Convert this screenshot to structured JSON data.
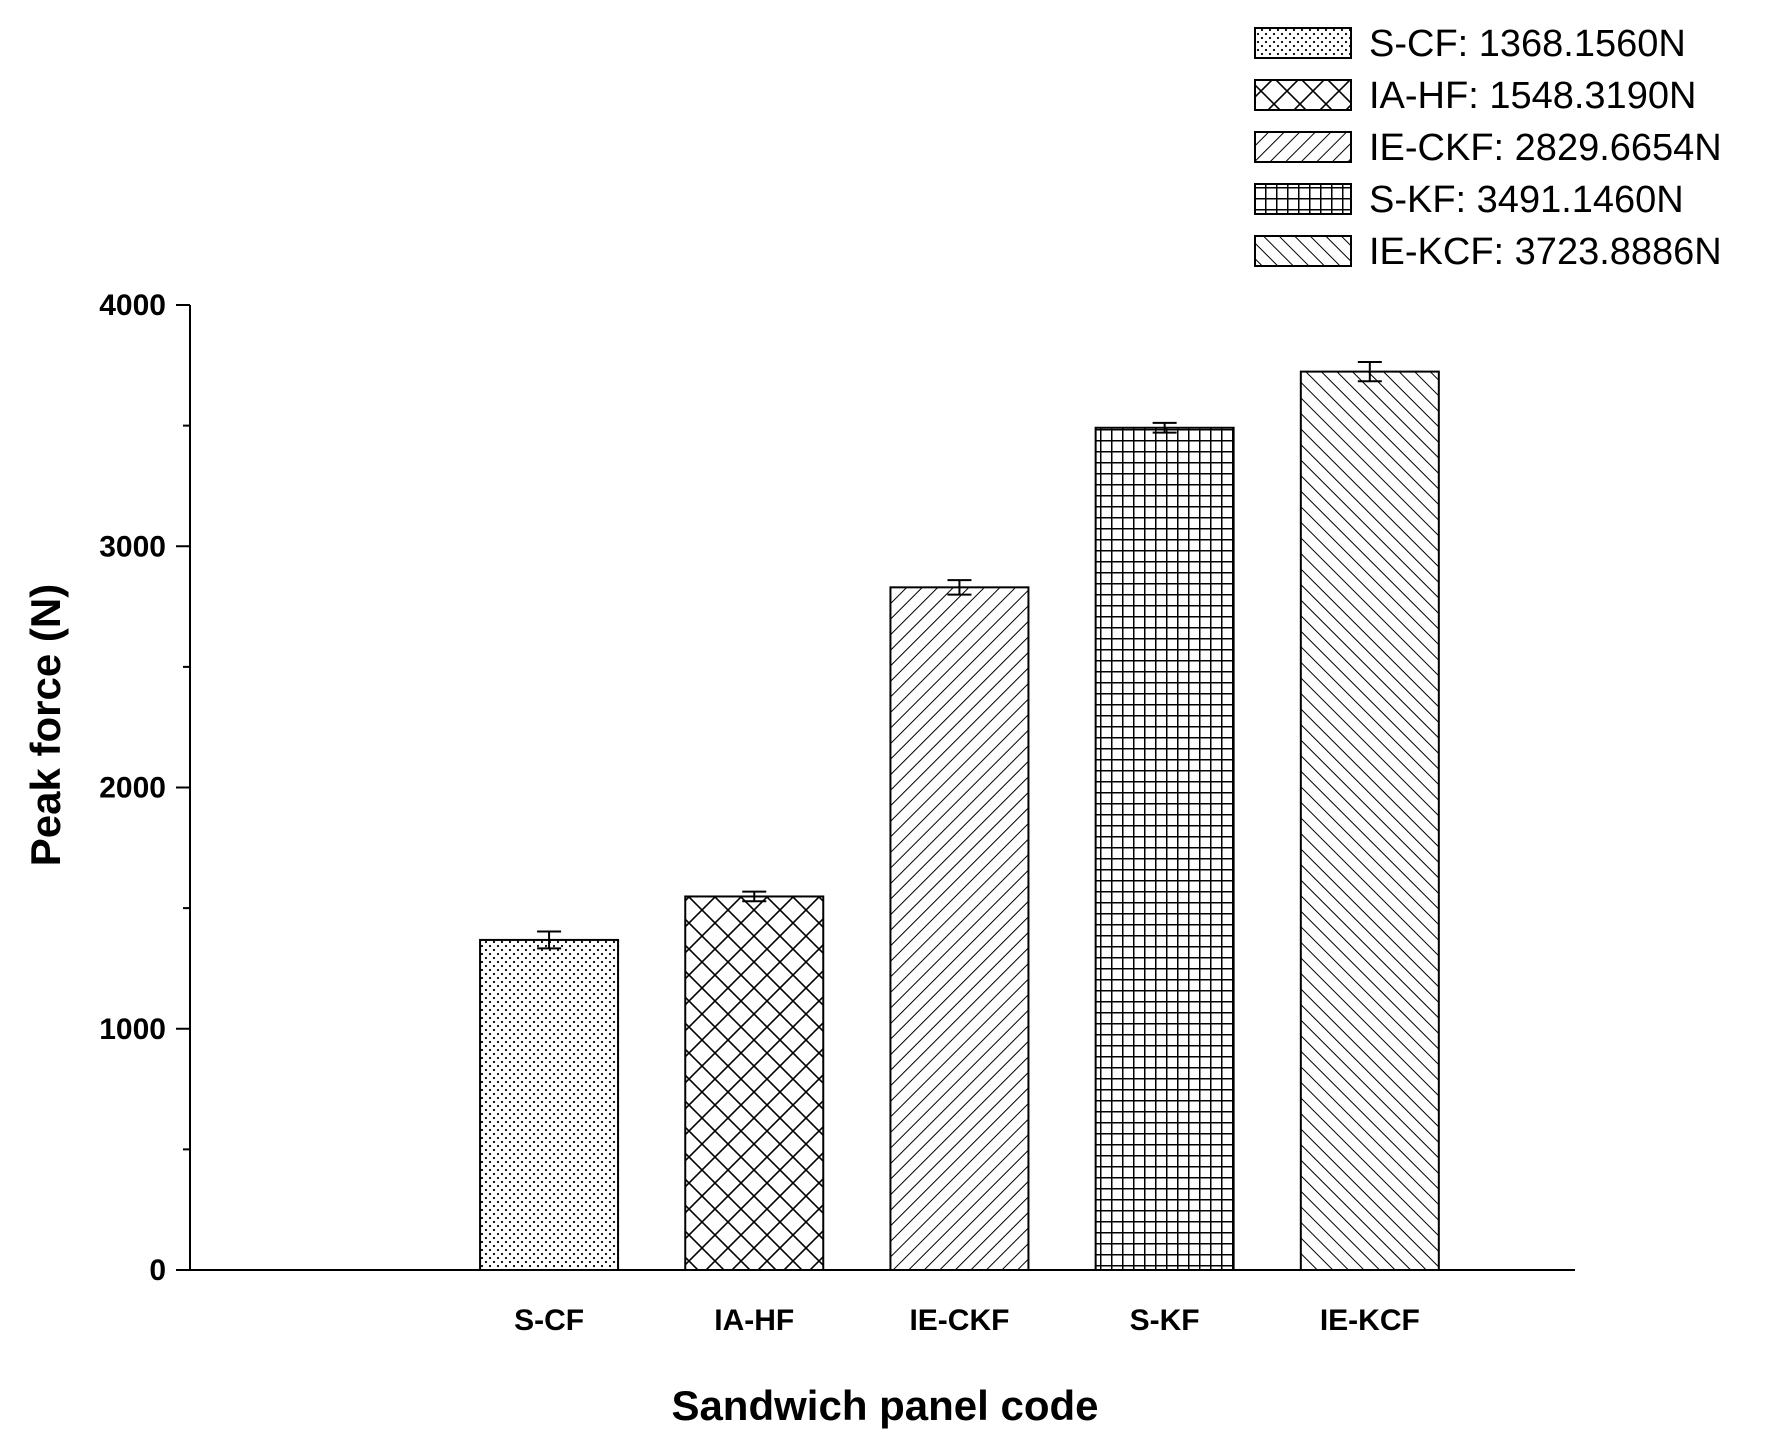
{
  "chart_data": {
    "type": "bar",
    "title": "",
    "xlabel": "Sandwich panel code",
    "ylabel": "Peak force (N)",
    "ylim": [
      0,
      4000
    ],
    "yticks": [
      0,
      1000,
      2000,
      3000,
      4000
    ],
    "ytick_labels": [
      "0",
      "1000",
      "2000",
      "3000",
      "4000"
    ],
    "categories": [
      "S-CF",
      "IA-HF",
      "IE-CKF",
      "S-KF",
      "IE-KCF"
    ],
    "values": [
      1368.156,
      1548.319,
      2829.6654,
      3491.146,
      3723.8886
    ],
    "errors": [
      35,
      20,
      30,
      20,
      40
    ],
    "patterns": [
      "dots",
      "crosshatch",
      "diag-up",
      "grid",
      "diag-down"
    ],
    "legend_position": "top-right",
    "legend": [
      {
        "label": "S-CF: 1368.1560N",
        "pattern": "dots"
      },
      {
        "label": "IA-HF: 1548.3190N",
        "pattern": "crosshatch"
      },
      {
        "label": "IE-CKF: 2829.6654N",
        "pattern": "diag-up"
      },
      {
        "label": "S-KF: 3491.1460N",
        "pattern": "grid"
      },
      {
        "label": "IE-KCF: 3723.8886N",
        "pattern": "diag-down"
      }
    ]
  }
}
